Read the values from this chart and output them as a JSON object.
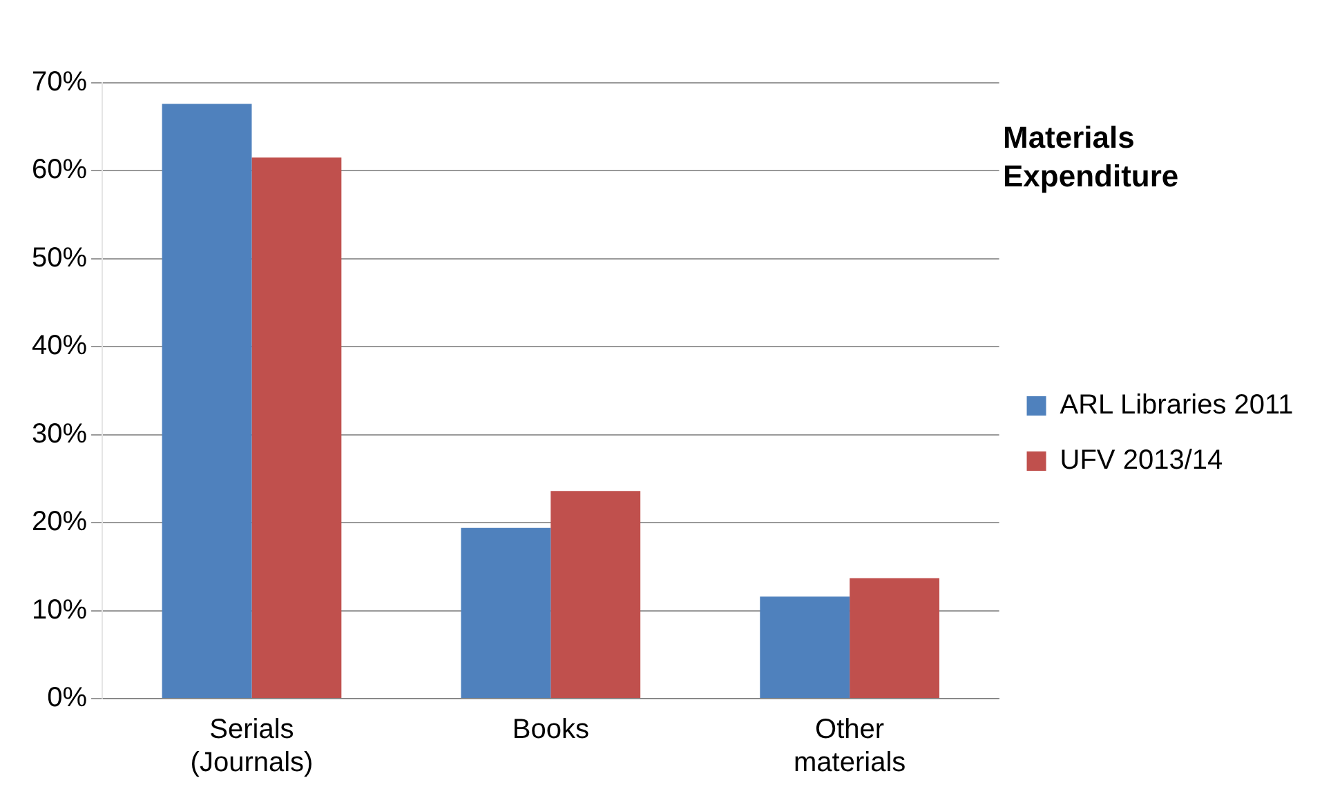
{
  "chart_data": {
    "type": "bar",
    "title": "Materials Expenditure",
    "categories": [
      "Serials\n(Journals)",
      "Books",
      "Other\nmaterials"
    ],
    "series": [
      {
        "name": "ARL Libraries 2011",
        "color": "#4f81bd",
        "values": [
          67.6,
          19.4,
          11.6
        ]
      },
      {
        "name": "UFV 2013/14",
        "color": "#c0504d",
        "values": [
          61.5,
          23.6,
          13.7
        ]
      }
    ],
    "ylim": [
      0,
      70
    ],
    "yticks": [
      {
        "value": 0,
        "label": "0%"
      },
      {
        "value": 10,
        "label": "10%"
      },
      {
        "value": 20,
        "label": "20%"
      },
      {
        "value": 30,
        "label": "30%"
      },
      {
        "value": 40,
        "label": "40%"
      },
      {
        "value": 50,
        "label": "50%"
      },
      {
        "value": 60,
        "label": "60%"
      },
      {
        "value": 70,
        "label": "70%"
      }
    ],
    "grid": "y",
    "legend": "right"
  }
}
